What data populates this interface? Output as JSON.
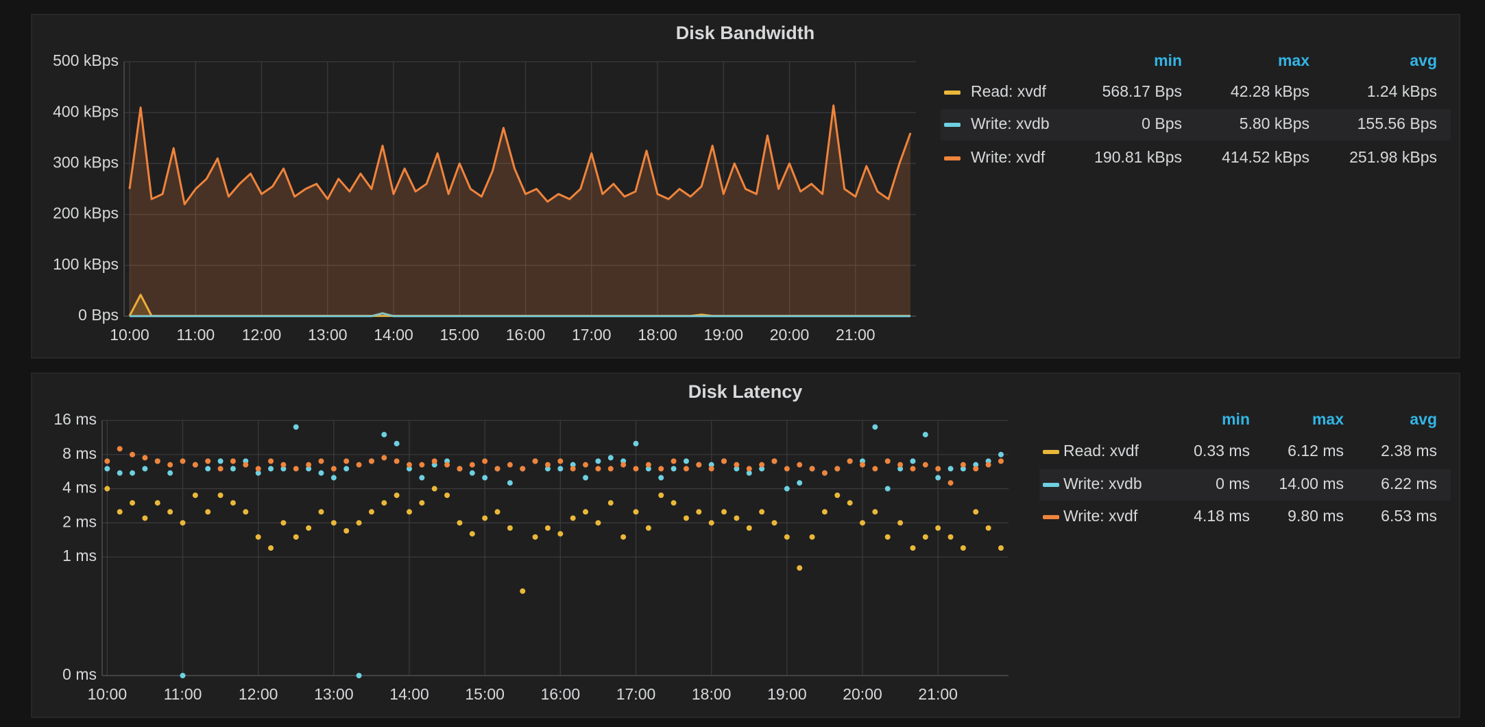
{
  "chart_data": [
    {
      "type": "line",
      "title": "Disk Bandwidth",
      "fill": true,
      "grid": true,
      "legend": "right",
      "legend_columns": [
        "min",
        "max",
        "avg"
      ],
      "x": [
        "10:00",
        "10:10",
        "10:20",
        "10:30",
        "10:40",
        "10:50",
        "11:00",
        "11:10",
        "11:20",
        "11:30",
        "11:40",
        "11:50",
        "12:00",
        "12:10",
        "12:20",
        "12:30",
        "12:40",
        "12:50",
        "13:00",
        "13:10",
        "13:20",
        "13:30",
        "13:40",
        "13:50",
        "14:00",
        "14:10",
        "14:20",
        "14:30",
        "14:40",
        "14:50",
        "15:00",
        "15:10",
        "15:20",
        "15:30",
        "15:40",
        "15:50",
        "16:00",
        "16:10",
        "16:20",
        "16:30",
        "16:40",
        "16:50",
        "17:00",
        "17:10",
        "17:20",
        "17:30",
        "17:40",
        "17:50",
        "18:00",
        "18:10",
        "18:20",
        "18:30",
        "18:40",
        "18:50",
        "19:00",
        "19:10",
        "19:20",
        "19:30",
        "19:40",
        "19:50",
        "20:00",
        "20:10",
        "20:20",
        "20:30",
        "20:40",
        "20:50",
        "21:00",
        "21:10",
        "21:20",
        "21:30",
        "21:40",
        "21:50"
      ],
      "xlim": [
        "09:55",
        "21:55"
      ],
      "xticks": [
        "10:00",
        "11:00",
        "12:00",
        "13:00",
        "14:00",
        "15:00",
        "16:00",
        "17:00",
        "18:00",
        "19:00",
        "20:00",
        "21:00"
      ],
      "ylim": [
        0,
        500
      ],
      "yticks": [
        {
          "value": 0,
          "label": "0 Bps"
        },
        {
          "value": 100,
          "label": "100 kBps"
        },
        {
          "value": 200,
          "label": "200 kBps"
        },
        {
          "value": 300,
          "label": "300 kBps"
        },
        {
          "value": 400,
          "label": "400 kBps"
        },
        {
          "value": 500,
          "label": "500 kBps"
        }
      ],
      "series": [
        {
          "name": "Read: xvdf",
          "color": "#eab839",
          "min": "568.17 Bps",
          "max": "42.28 kBps",
          "avg": "1.24 kBps",
          "values": [
            0.5,
            42,
            0.5,
            0.5,
            0.5,
            0.5,
            0.5,
            0.5,
            0.5,
            0.5,
            0.5,
            0.5,
            0.5,
            0.5,
            0.5,
            0.5,
            0.5,
            0.5,
            0.5,
            0.5,
            0.5,
            0.5,
            0.5,
            0.5,
            0.5,
            0.5,
            0.5,
            0.5,
            0.5,
            0.5,
            0.5,
            0.5,
            0.5,
            0.5,
            0.5,
            0.5,
            0.5,
            0.5,
            0.5,
            0.5,
            0.5,
            0.5,
            0.5,
            0.5,
            0.5,
            0.5,
            0.5,
            0.5,
            0.5,
            0.5,
            0.5,
            0.5,
            3,
            0.5,
            0.5,
            0.5,
            0.5,
            0.5,
            0.5,
            0.5,
            0.5,
            0.5,
            0.5,
            0.5,
            0.5,
            0.5,
            0.5,
            0.5,
            0.5,
            0.5,
            0.5,
            0.5
          ]
        },
        {
          "name": "Write: xvdb",
          "color": "#6ed0e0",
          "min": "0 Bps",
          "max": "5.80 kBps",
          "avg": "155.56 Bps",
          "values": [
            0.15,
            0.15,
            0.15,
            0.15,
            0.15,
            0.15,
            0.15,
            0.15,
            0.15,
            0.15,
            0.15,
            0.15,
            0.15,
            0.15,
            0.15,
            0.15,
            0.15,
            0.15,
            0.15,
            0.15,
            0.15,
            0.15,
            0.15,
            5.8,
            0.15,
            0.15,
            0.15,
            0.15,
            0.15,
            0.15,
            0.15,
            0.15,
            0.15,
            0.15,
            0.15,
            0.15,
            0.15,
            0.15,
            0.15,
            0.15,
            0.15,
            0.15,
            0.15,
            0.15,
            0.15,
            0.15,
            0.15,
            0.15,
            0.15,
            0.15,
            0.15,
            0.15,
            0.15,
            0.15,
            0.15,
            0.15,
            0.15,
            0.15,
            0.15,
            0.15,
            0.15,
            0.15,
            0.15,
            0.15,
            0.15,
            0.15,
            0.15,
            0.15,
            0.15,
            0.15,
            0.15,
            0.15
          ]
        },
        {
          "name": "Write: xvdf",
          "color": "#ef843c",
          "min": "190.81 kBps",
          "max": "414.52 kBps",
          "avg": "251.98 kBps",
          "values": [
            250,
            410,
            230,
            240,
            330,
            220,
            250,
            270,
            310,
            235,
            260,
            280,
            240,
            255,
            290,
            235,
            250,
            260,
            230,
            270,
            245,
            280,
            250,
            335,
            240,
            290,
            245,
            260,
            320,
            240,
            300,
            250,
            235,
            285,
            370,
            290,
            240,
            250,
            225,
            240,
            230,
            250,
            320,
            240,
            260,
            235,
            245,
            325,
            240,
            230,
            250,
            235,
            255,
            335,
            240,
            300,
            250,
            240,
            355,
            250,
            300,
            245,
            260,
            240,
            414,
            250,
            235,
            295,
            245,
            230,
            300,
            360
          ]
        }
      ]
    },
    {
      "type": "scatter",
      "title": "Disk Latency",
      "grid": true,
      "legend": "right",
      "log_base": 2,
      "legend_columns": [
        "min",
        "max",
        "avg"
      ],
      "x": [
        "10:00",
        "10:10",
        "10:20",
        "10:30",
        "10:40",
        "10:50",
        "11:00",
        "11:10",
        "11:20",
        "11:30",
        "11:40",
        "11:50",
        "12:00",
        "12:10",
        "12:20",
        "12:30",
        "12:40",
        "12:50",
        "13:00",
        "13:10",
        "13:20",
        "13:30",
        "13:40",
        "13:50",
        "14:00",
        "14:10",
        "14:20",
        "14:30",
        "14:40",
        "14:50",
        "15:00",
        "15:10",
        "15:20",
        "15:30",
        "15:40",
        "15:50",
        "16:00",
        "16:10",
        "16:20",
        "16:30",
        "16:40",
        "16:50",
        "17:00",
        "17:10",
        "17:20",
        "17:30",
        "17:40",
        "17:50",
        "18:00",
        "18:10",
        "18:20",
        "18:30",
        "18:40",
        "18:50",
        "19:00",
        "19:10",
        "19:20",
        "19:30",
        "19:40",
        "19:50",
        "20:00",
        "20:10",
        "20:20",
        "20:30",
        "20:40",
        "20:50",
        "21:00",
        "21:10",
        "21:20",
        "21:30",
        "21:40",
        "21:50"
      ],
      "xlim": [
        "09:56",
        "21:56"
      ],
      "xticks": [
        "10:00",
        "11:00",
        "12:00",
        "13:00",
        "14:00",
        "15:00",
        "16:00",
        "17:00",
        "18:00",
        "19:00",
        "20:00",
        "21:00"
      ],
      "ylim": [
        0.09,
        16
      ],
      "yticks": [
        {
          "value": 0.09,
          "label": "0 ms"
        },
        {
          "value": 1,
          "label": "1 ms"
        },
        {
          "value": 2,
          "label": "2 ms"
        },
        {
          "value": 4,
          "label": "4 ms"
        },
        {
          "value": 8,
          "label": "8 ms"
        },
        {
          "value": 16,
          "label": "16 ms"
        }
      ],
      "series": [
        {
          "name": "Read: xvdf",
          "color": "#eab839",
          "min": "0.33 ms",
          "max": "6.12 ms",
          "avg": "2.38 ms",
          "values": [
            4,
            2.5,
            3,
            2.2,
            3,
            2.5,
            2,
            3.5,
            2.5,
            3.5,
            3,
            2.5,
            1.5,
            1.2,
            2,
            1.5,
            1.8,
            2.5,
            2,
            1.7,
            2,
            2.5,
            3,
            3.5,
            2.5,
            3,
            4,
            3.5,
            2,
            1.6,
            2.2,
            2.5,
            1.8,
            0.5,
            1.5,
            1.8,
            1.6,
            2.2,
            2.5,
            2,
            3,
            1.5,
            2.5,
            1.8,
            3.5,
            3,
            2.2,
            2.5,
            2,
            2.5,
            2.2,
            1.8,
            2.5,
            2,
            1.5,
            0.8,
            1.5,
            2.5,
            3.5,
            3,
            2,
            2.5,
            1.5,
            2,
            1.2,
            1.5,
            1.8,
            1.5,
            1.2,
            2.5,
            1.8,
            1.2
          ]
        },
        {
          "name": "Write: xvdb",
          "color": "#6ed0e0",
          "min": "0 ms",
          "max": "14.00 ms",
          "avg": "6.22 ms",
          "values": [
            6,
            5.5,
            5.5,
            6,
            7,
            5.5,
            0,
            6.5,
            6,
            7,
            6,
            7,
            5.5,
            6,
            6,
            14,
            6,
            5.5,
            5,
            6,
            0,
            7,
            12,
            10,
            6,
            5,
            6.5,
            7,
            6,
            5.5,
            5,
            6,
            4.5,
            6,
            7,
            6,
            6,
            6.5,
            5,
            7,
            7.5,
            7,
            10,
            6,
            5,
            6,
            7,
            6.5,
            6.5,
            7,
            6,
            5.5,
            6,
            7,
            4,
            4.5,
            6,
            5.5,
            6,
            7,
            7,
            14,
            4,
            6,
            7,
            12,
            5,
            6,
            6,
            6.5,
            7,
            8
          ]
        },
        {
          "name": "Write: xvdf",
          "color": "#ef843c",
          "min": "4.18 ms",
          "max": "9.80 ms",
          "avg": "6.53 ms",
          "values": [
            7,
            9,
            8,
            7.5,
            7,
            6.5,
            7,
            6.5,
            7,
            6,
            7,
            6.5,
            6,
            7,
            6.5,
            6,
            6.5,
            7,
            6,
            7,
            6.5,
            7,
            7.5,
            7,
            6.5,
            6.5,
            7,
            6.5,
            6,
            6.5,
            7,
            6,
            6.5,
            6,
            7,
            6.5,
            7,
            6,
            6.5,
            6,
            6,
            6.5,
            6,
            6.5,
            6,
            7,
            6,
            6.5,
            6,
            7,
            6.5,
            6,
            6.5,
            7,
            6,
            6.5,
            6,
            5.5,
            6,
            7,
            6.5,
            6,
            7,
            6.5,
            6,
            6.5,
            6,
            4.5,
            6.5,
            6,
            6.5,
            7
          ]
        }
      ]
    }
  ]
}
